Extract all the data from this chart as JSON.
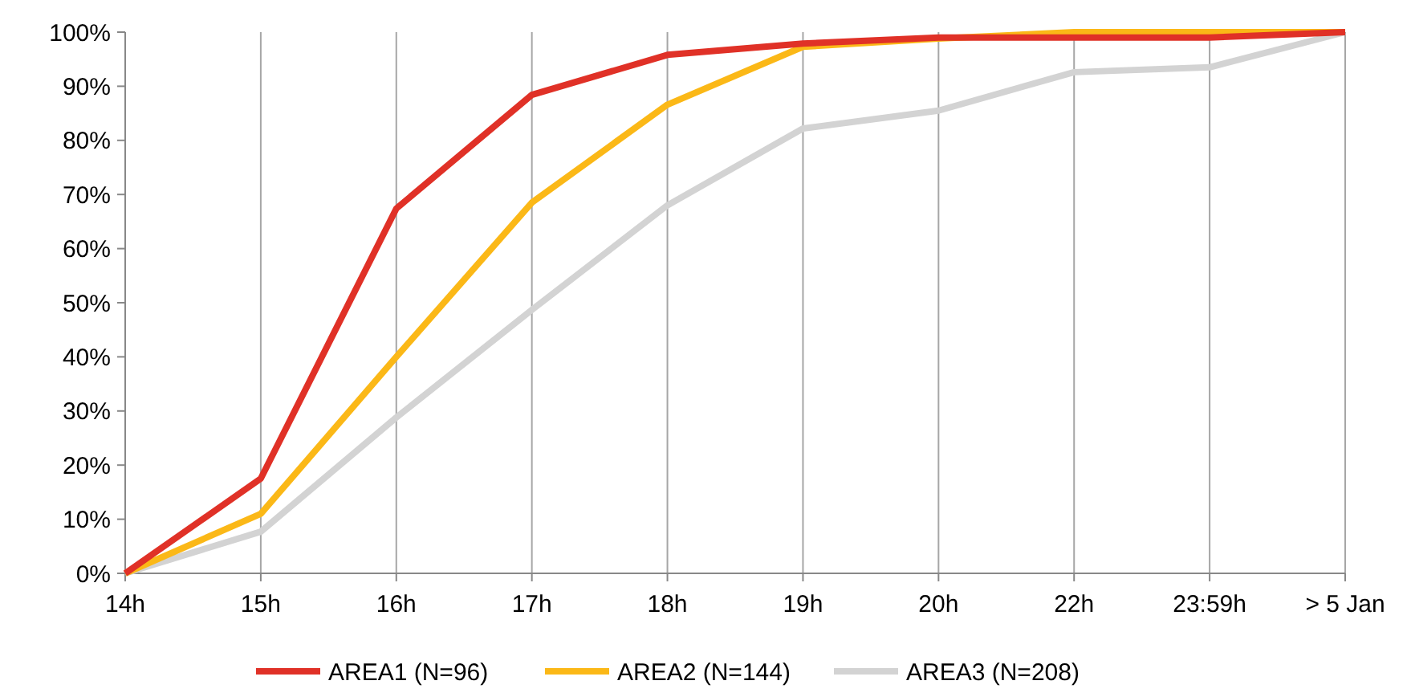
{
  "chart_data": {
    "type": "line",
    "categories": [
      "14h",
      "15h",
      "16h",
      "17h",
      "18h",
      "19h",
      "20h",
      "22h",
      "23:59h",
      "> 5 Jan"
    ],
    "series": [
      {
        "name": "AREA1 (N=96)",
        "color": "#e03127",
        "values": [
          0,
          17.5,
          67.4,
          88.4,
          95.8,
          97.9,
          99,
          99,
          99,
          100
        ]
      },
      {
        "name": "AREA2 (N=144)",
        "color": "#fbb817",
        "values": [
          0,
          11,
          40,
          68.5,
          86.6,
          97.3,
          98.8,
          100,
          100,
          100
        ]
      },
      {
        "name": "AREA3 (N=208)",
        "color": "#d3d3d3",
        "values": [
          0,
          7.7,
          28.8,
          48.7,
          68,
          82.2,
          85.5,
          92.6,
          93.5,
          100
        ]
      }
    ],
    "ylim": [
      0,
      100
    ],
    "yticks": [
      {
        "value": 0,
        "label": "0%"
      },
      {
        "value": 10,
        "label": "10%"
      },
      {
        "value": 20,
        "label": "20%"
      },
      {
        "value": 30,
        "label": "30%"
      },
      {
        "value": 40,
        "label": "40%"
      },
      {
        "value": 50,
        "label": "50%"
      },
      {
        "value": 60,
        "label": "60%"
      },
      {
        "value": 70,
        "label": "70%"
      },
      {
        "value": 80,
        "label": "80%"
      },
      {
        "value": 90,
        "label": "90%"
      },
      {
        "value": 100,
        "label": "100%"
      }
    ],
    "grid": "x",
    "legend": "bottom",
    "marker": "none",
    "line_style": "solid"
  }
}
